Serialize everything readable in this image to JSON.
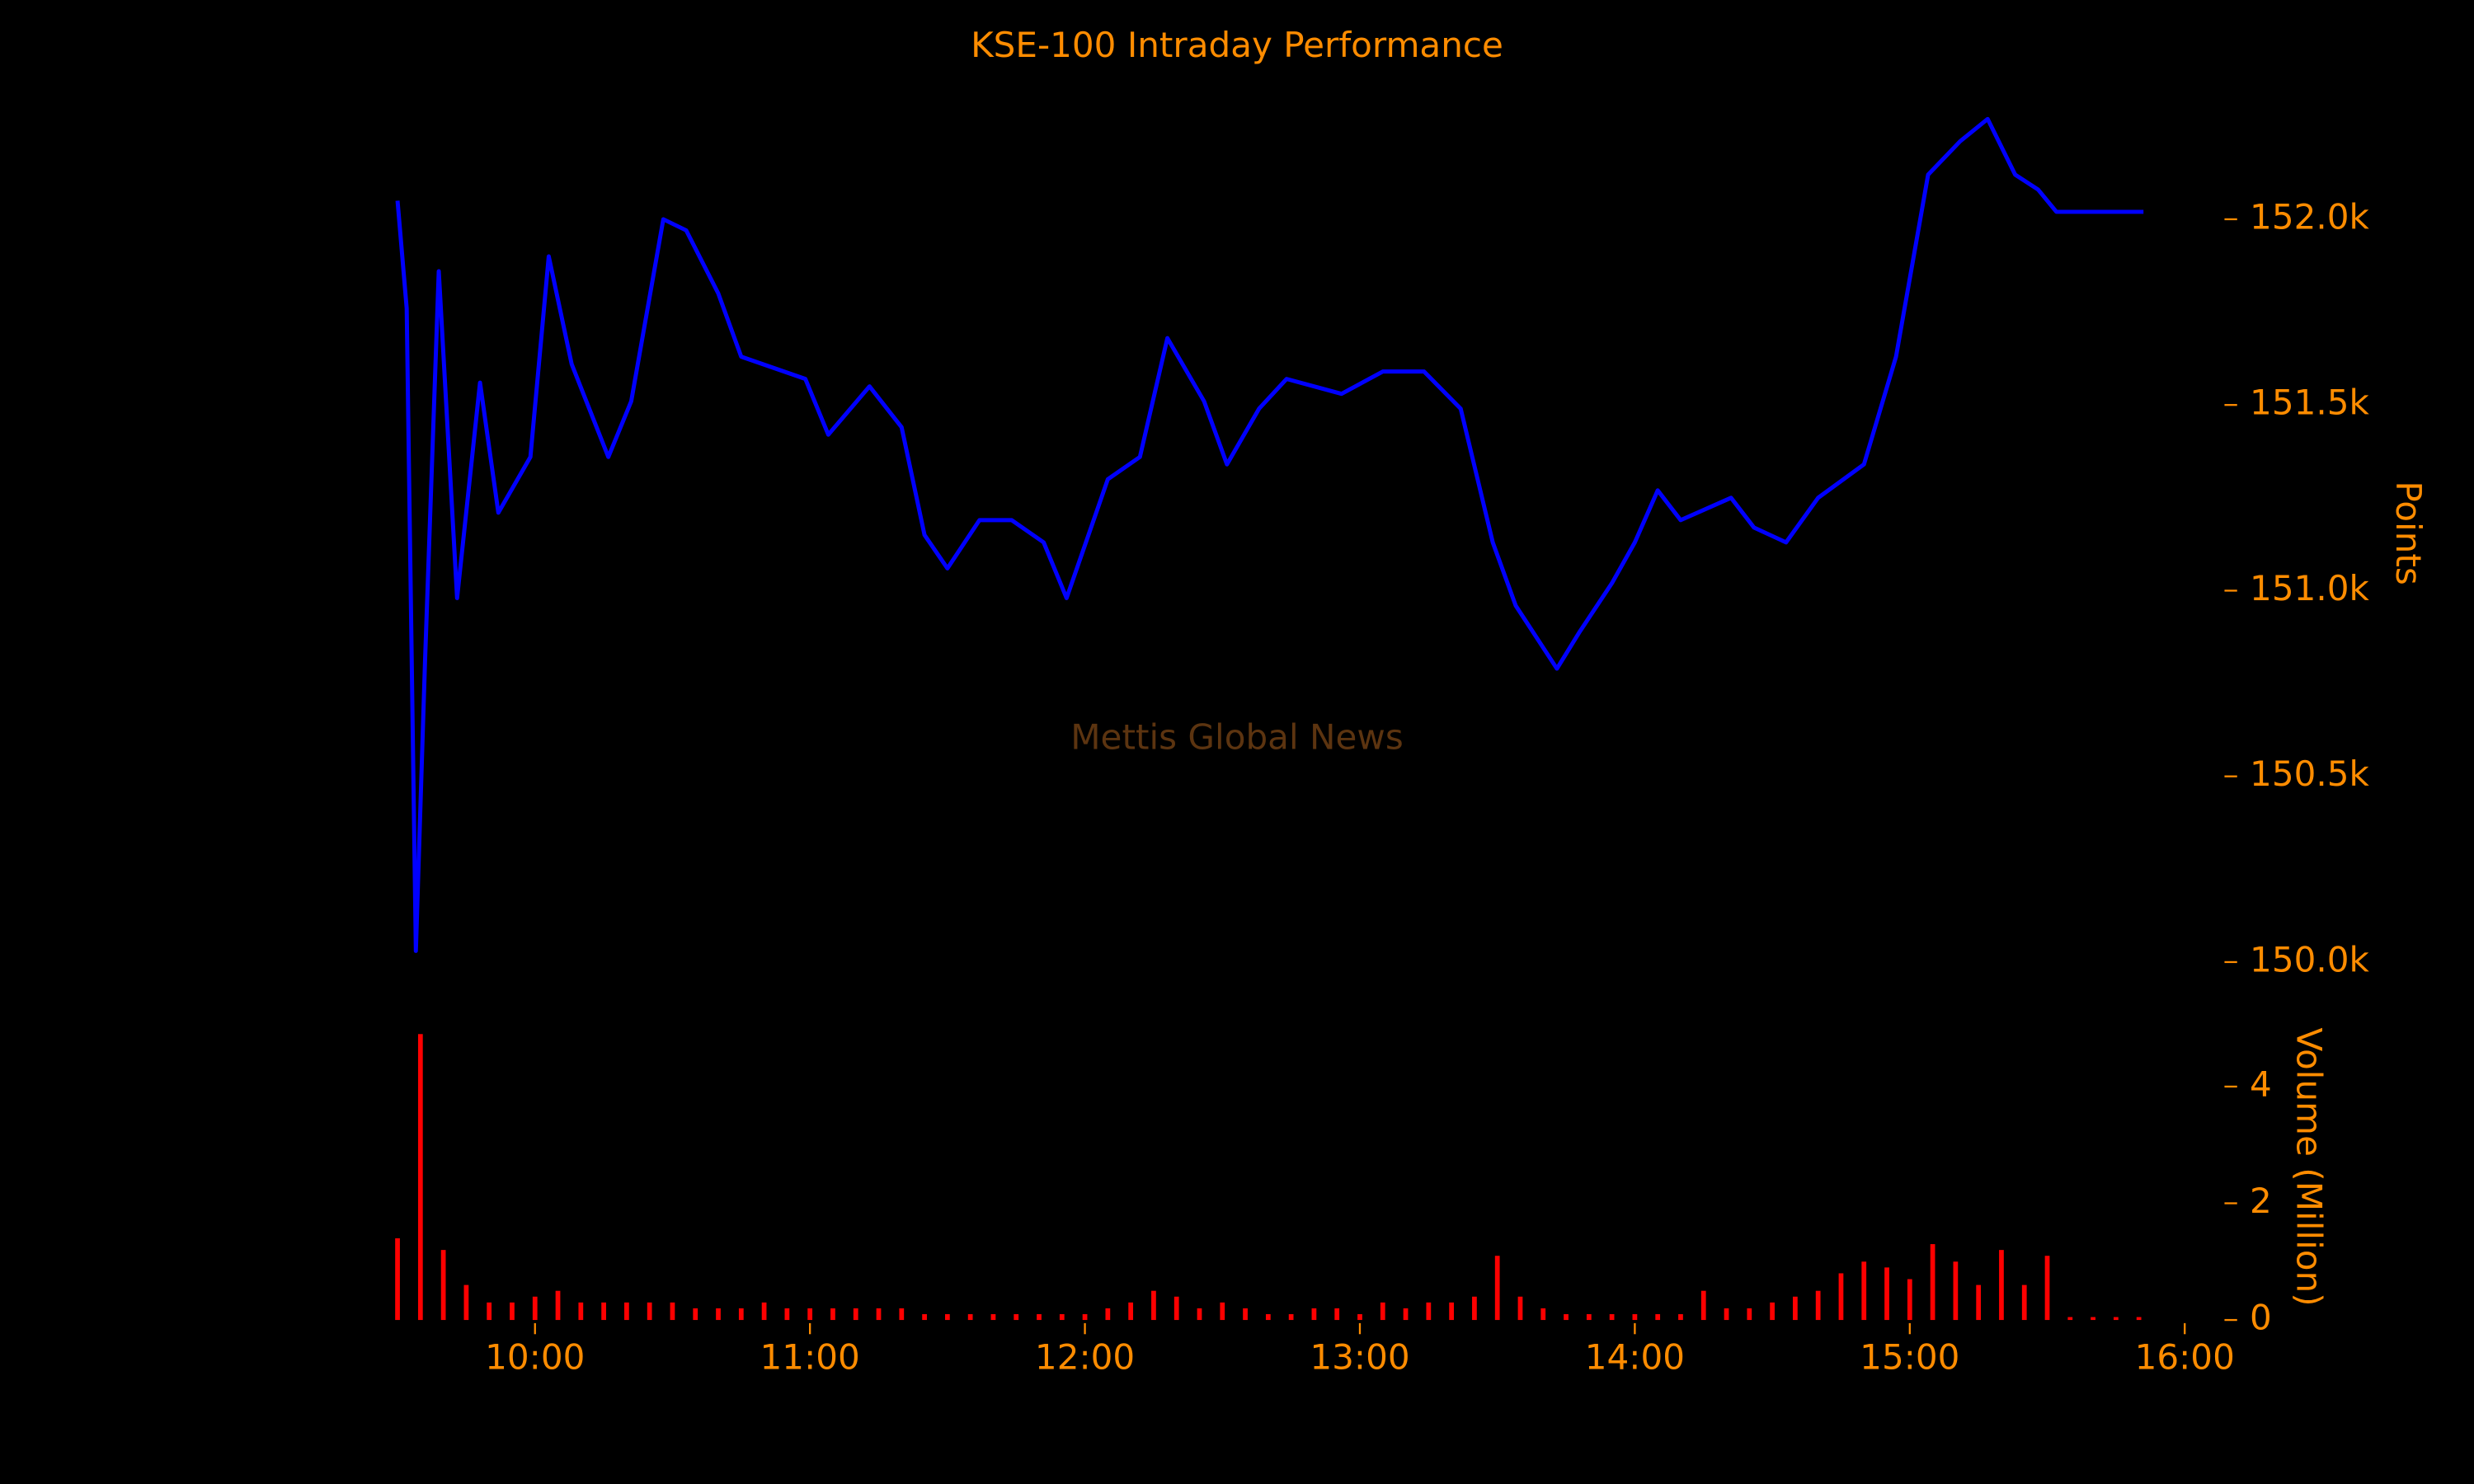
{
  "chart_data": [
    {
      "type": "line",
      "title": "KSE-100 Intraday Performance",
      "annotation": "Mettis Global News",
      "ylabel": "Points",
      "color": "#0000ff",
      "xlim": [
        563,
        962
      ],
      "ylim": [
        149900,
        152350
      ],
      "yticks": [
        {
          "value": 150000,
          "label": "150.0k"
        },
        {
          "value": 150500,
          "label": "150.5k"
        },
        {
          "value": 151000,
          "label": "151.0k"
        },
        {
          "value": 151500,
          "label": "151.5k"
        },
        {
          "value": 152000,
          "label": "152.0k"
        }
      ],
      "x": [
        570,
        572,
        574,
        576,
        579,
        583,
        588,
        592,
        599,
        603,
        608,
        616,
        621,
        628,
        633,
        640,
        645,
        659,
        664,
        673,
        680,
        685,
        690,
        697,
        704,
        711,
        716,
        725,
        732,
        738,
        746,
        751,
        758,
        764,
        776,
        785,
        794,
        802,
        809,
        814,
        823,
        828,
        835,
        840,
        845,
        850,
        861,
        866,
        873,
        880,
        890,
        897,
        904,
        911,
        917,
        923,
        928,
        932,
        951
      ],
      "values": [
        152050,
        151760,
        150030,
        150810,
        151860,
        150980,
        151560,
        151210,
        151360,
        151900,
        151610,
        151360,
        151510,
        152000,
        151970,
        151800,
        151630,
        151570,
        151420,
        151550,
        151440,
        151150,
        151060,
        151190,
        151190,
        151130,
        150980,
        151300,
        151360,
        151680,
        151510,
        151340,
        151490,
        151570,
        151530,
        151590,
        151590,
        151490,
        151130,
        150960,
        150790,
        150890,
        151020,
        151130,
        151270,
        151190,
        151250,
        151170,
        151130,
        151250,
        151340,
        151630,
        152120,
        152210,
        152270,
        152120,
        152080,
        152020,
        152020
      ]
    },
    {
      "type": "bar",
      "ylabel": "Volume (Million)",
      "color": "#ff0000",
      "xlim": [
        563,
        962
      ],
      "ylim": [
        0,
        5
      ],
      "yticks": [
        0,
        2,
        4
      ],
      "xticks": [
        {
          "value": 600,
          "label": "10:00"
        },
        {
          "value": 660,
          "label": "11:00"
        },
        {
          "value": 720,
          "label": "12:00"
        },
        {
          "value": 780,
          "label": "13:00"
        },
        {
          "value": 840,
          "label": "14:00"
        },
        {
          "value": 900,
          "label": "15:00"
        },
        {
          "value": 960,
          "label": "16:00"
        }
      ],
      "x": [
        570,
        575,
        580,
        585,
        590,
        595,
        600,
        605,
        610,
        615,
        620,
        625,
        630,
        635,
        640,
        645,
        650,
        655,
        660,
        665,
        670,
        675,
        680,
        685,
        690,
        695,
        700,
        705,
        710,
        715,
        720,
        725,
        730,
        735,
        740,
        745,
        750,
        755,
        760,
        765,
        770,
        775,
        780,
        785,
        790,
        795,
        800,
        805,
        810,
        815,
        820,
        825,
        830,
        835,
        840,
        845,
        850,
        855,
        860,
        865,
        870,
        875,
        880,
        885,
        890,
        895,
        900,
        905,
        910,
        915,
        920,
        925,
        930,
        935,
        940,
        945,
        950
      ],
      "values": [
        1.4,
        4.9,
        1.2,
        0.6,
        0.3,
        0.3,
        0.4,
        0.5,
        0.3,
        0.3,
        0.3,
        0.3,
        0.3,
        0.2,
        0.2,
        0.2,
        0.3,
        0.2,
        0.2,
        0.2,
        0.2,
        0.2,
        0.2,
        0.1,
        0.1,
        0.1,
        0.1,
        0.1,
        0.1,
        0.1,
        0.1,
        0.2,
        0.3,
        0.5,
        0.4,
        0.2,
        0.3,
        0.2,
        0.1,
        0.1,
        0.2,
        0.2,
        0.1,
        0.3,
        0.2,
        0.3,
        0.3,
        0.4,
        1.1,
        0.4,
        0.2,
        0.1,
        0.1,
        0.1,
        0.1,
        0.1,
        0.1,
        0.5,
        0.2,
        0.2,
        0.3,
        0.4,
        0.5,
        0.8,
        1.0,
        0.9,
        0.7,
        1.3,
        1.0,
        0.6,
        1.2,
        0.6,
        1.1,
        0.05,
        0.05,
        0.05,
        0.05
      ]
    }
  ]
}
